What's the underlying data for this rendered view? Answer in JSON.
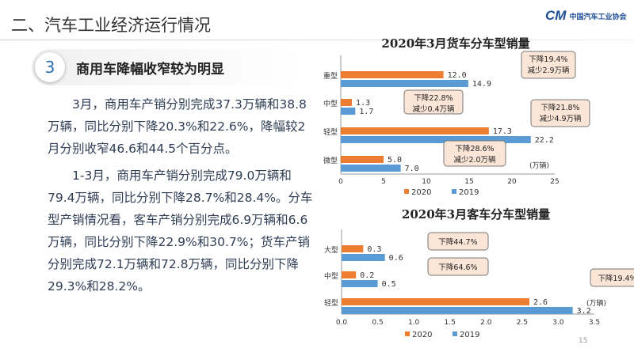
{
  "header": {
    "title": "二、汽车工业经济运行情况",
    "logo_text": "中国汽车工业协会",
    "logo_mark": "CM"
  },
  "section": {
    "number": "3",
    "title": "商用车降幅收窄较为明显"
  },
  "paragraphs": [
    "3月，商用车产销分别完成37.3万辆和38.8万辆，同比分别下降20.3%和22.6%，降幅较2月分别收窄46.6和44.5个百分点。",
    "1-3月，商用车产销分别完成79.0万辆和79.4万辆，同比分别下降28.7%和28.4%。分车型产销情况看，客车产销分别完成6.9万辆和6.6万辆，同比分别下降22.9%和30.7%；货车产销分别完成72.1万辆和72.8万辆，同比分别下降29.3%和28.2%。"
  ],
  "page_number": "15",
  "colors": {
    "s2020": "#ed7d31",
    "s2019": "#5b9bd5",
    "callout": "#fbe5d6"
  },
  "chart_data": [
    {
      "type": "bar",
      "title": "2020年3月货车分车型销量",
      "categories": [
        "重型",
        "中型",
        "轻型",
        "微型"
      ],
      "series": [
        {
          "name": "2020",
          "values": [
            12.0,
            1.3,
            17.3,
            5.0
          ]
        },
        {
          "name": "2019",
          "values": [
            14.9,
            1.7,
            22.2,
            7.0
          ]
        }
      ],
      "value_labels": [
        [
          "12.0",
          "1.3",
          "17.3",
          "5.0"
        ],
        [
          "14.9",
          "1.7",
          "22.2",
          "7.0"
        ]
      ],
      "unit": "(万辆)",
      "xlim": [
        0,
        25
      ],
      "xticks": [
        "0",
        "5",
        "10",
        "15",
        "20",
        "25"
      ],
      "annotations": [
        "下降19.4% 减少2.9万辆",
        "下降22.8% 减少0.4万辆",
        "下降21.8% 减少4.9万辆",
        "下降28.6% 减少2.0万辆"
      ],
      "legend": "bottom"
    },
    {
      "type": "bar",
      "title": "2020年3月客车分车型销量",
      "categories": [
        "大型",
        "中型",
        "轻型"
      ],
      "series": [
        {
          "name": "2020",
          "values": [
            0.3,
            0.2,
            2.6
          ]
        },
        {
          "name": "2019",
          "values": [
            0.6,
            0.5,
            3.2
          ]
        }
      ],
      "value_labels": [
        [
          "0.3",
          "0.2",
          "2.6"
        ],
        [
          "0.6",
          "0.5",
          "3.2"
        ]
      ],
      "unit": "(万辆)",
      "xlim": [
        0,
        3.5
      ],
      "xticks": [
        "0.0",
        "0.5",
        "1.0",
        "1.5",
        "2.0",
        "2.5",
        "3.0",
        "3.5"
      ],
      "annotations": [
        "下降44.7%",
        "下降64.6%",
        "下降19.4%"
      ],
      "legend": "bottom"
    }
  ]
}
